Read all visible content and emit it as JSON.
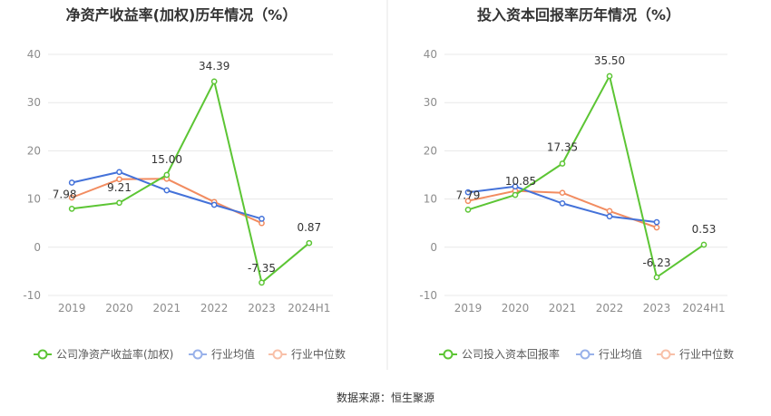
{
  "source": "数据来源：恒生聚源",
  "chart_data": [
    {
      "type": "line",
      "title": "净资产收益率(加权)历年情况（%）",
      "categories": [
        "2019",
        "2020",
        "2021",
        "2022",
        "2023",
        "2024H1"
      ],
      "ylim": [
        -10,
        40
      ],
      "yticks": [
        "40",
        "30",
        "20",
        "10",
        "0",
        "-10"
      ],
      "grid": true,
      "legend_position": "bottom",
      "series": [
        {
          "name": "公司净资产收益率(加权)",
          "color": "#5cc534",
          "values": [
            7.98,
            9.21,
            15.0,
            34.39,
            -7.35,
            0.87
          ],
          "labels": [
            "7.98",
            "9.21",
            "15.00",
            "34.39",
            "-7.35",
            "0.87"
          ]
        },
        {
          "name": "行业均值",
          "color": "#4472d9",
          "values": [
            13.4,
            15.6,
            11.8,
            8.8,
            5.9,
            null
          ]
        },
        {
          "name": "行业中位数",
          "color": "#f28c60",
          "values": [
            10.3,
            14.1,
            14.2,
            9.4,
            5.0,
            null
          ]
        }
      ]
    },
    {
      "type": "line",
      "title": "投入资本回报率历年情况（%）",
      "categories": [
        "2019",
        "2020",
        "2021",
        "2022",
        "2023",
        "2024H1"
      ],
      "ylim": [
        -10,
        40
      ],
      "yticks": [
        "40",
        "30",
        "20",
        "10",
        "0",
        "-10"
      ],
      "grid": true,
      "legend_position": "bottom",
      "series": [
        {
          "name": "公司投入资本回报率",
          "color": "#5cc534",
          "values": [
            7.79,
            10.85,
            17.35,
            35.5,
            -6.23,
            0.53
          ],
          "labels": [
            "7.79",
            "10.85",
            "17.35",
            "35.50",
            "-6.23",
            "0.53"
          ]
        },
        {
          "name": "行业均值",
          "color": "#4472d9",
          "values": [
            11.4,
            12.6,
            9.1,
            6.4,
            5.2,
            null
          ]
        },
        {
          "name": "行业中位数",
          "color": "#f28c60",
          "values": [
            9.6,
            11.7,
            11.3,
            7.5,
            4.1,
            null
          ]
        }
      ]
    }
  ]
}
